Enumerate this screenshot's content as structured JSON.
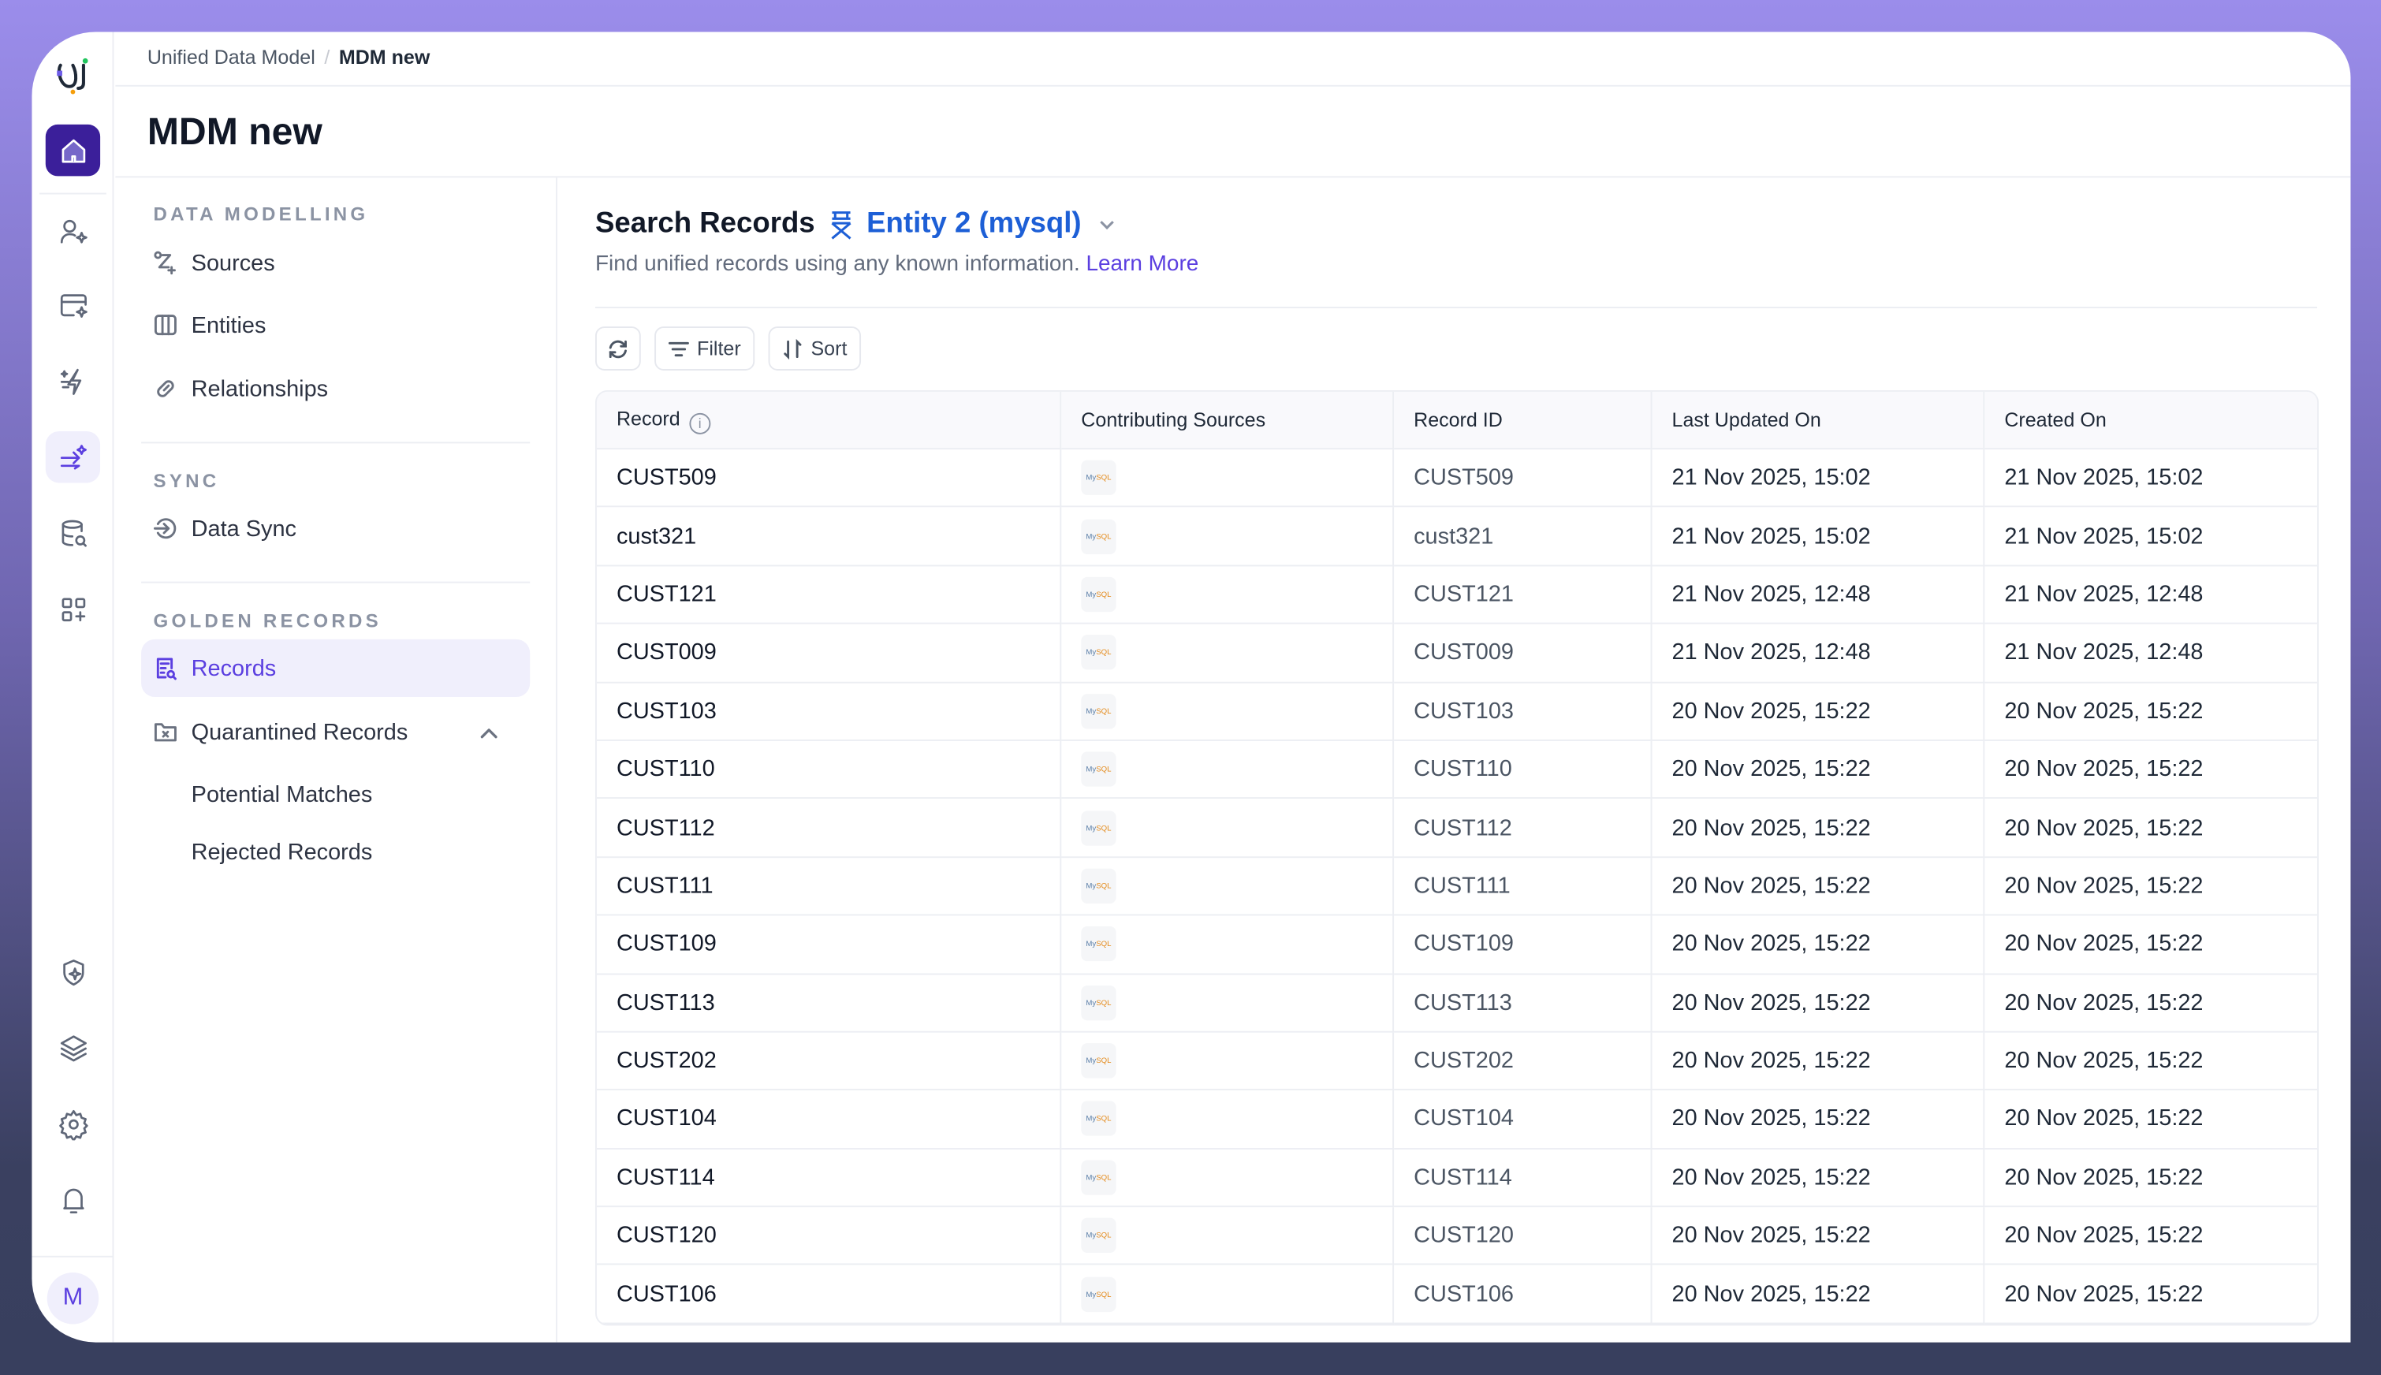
{
  "breadcrumb": {
    "parent": "Unified Data Model",
    "current": "MDM new"
  },
  "page_title": "MDM new",
  "rail": {
    "icons": [
      "home-icon",
      "user-sparkle-icon",
      "card-sparkle-icon",
      "bolt-sparkle-icon",
      "flow-sparkle-icon",
      "database-search-icon",
      "grid-plus-icon",
      "shield-sparkle-icon",
      "layers-icon",
      "gear-icon",
      "bell-icon"
    ],
    "active": "flow-sparkle-icon",
    "avatar": "M"
  },
  "nav": {
    "data_modelling": {
      "label": "DATA MODELLING",
      "items": [
        "Sources",
        "Entities",
        "Relationships"
      ]
    },
    "sync": {
      "label": "SYNC",
      "items": [
        "Data Sync"
      ]
    },
    "golden_records": {
      "label": "GOLDEN RECORDS",
      "records": "Records",
      "quarantined": "Quarantined Records",
      "sub": [
        "Potential Matches",
        "Rejected Records"
      ]
    }
  },
  "search": {
    "title": "Search Records",
    "entity": "Entity 2 (mysql)",
    "description": "Find unified records using any known information.",
    "learn_more": "Learn More"
  },
  "toolbar": {
    "filter": "Filter",
    "sort": "Sort"
  },
  "colors": {
    "accent": "#5b3fe0",
    "entity_blue": "#1d5fd6",
    "home_bg": "#3b1f9a"
  },
  "table": {
    "columns": [
      "Record",
      "Contributing Sources",
      "Record ID",
      "Last Updated On",
      "Created On"
    ],
    "source_logo": "MySQL",
    "rows": [
      [
        "CUST509",
        "CUST509",
        "21 Nov 2025, 15:02",
        "21 Nov 2025, 15:02"
      ],
      [
        "cust321",
        "cust321",
        "21 Nov 2025, 15:02",
        "21 Nov 2025, 15:02"
      ],
      [
        "CUST121",
        "CUST121",
        "21 Nov 2025, 12:48",
        "21 Nov 2025, 12:48"
      ],
      [
        "CUST009",
        "CUST009",
        "21 Nov 2025, 12:48",
        "21 Nov 2025, 12:48"
      ],
      [
        "CUST103",
        "CUST103",
        "20 Nov 2025, 15:22",
        "20 Nov 2025, 15:22"
      ],
      [
        "CUST110",
        "CUST110",
        "20 Nov 2025, 15:22",
        "20 Nov 2025, 15:22"
      ],
      [
        "CUST112",
        "CUST112",
        "20 Nov 2025, 15:22",
        "20 Nov 2025, 15:22"
      ],
      [
        "CUST111",
        "CUST111",
        "20 Nov 2025, 15:22",
        "20 Nov 2025, 15:22"
      ],
      [
        "CUST109",
        "CUST109",
        "20 Nov 2025, 15:22",
        "20 Nov 2025, 15:22"
      ],
      [
        "CUST113",
        "CUST113",
        "20 Nov 2025, 15:22",
        "20 Nov 2025, 15:22"
      ],
      [
        "CUST202",
        "CUST202",
        "20 Nov 2025, 15:22",
        "20 Nov 2025, 15:22"
      ],
      [
        "CUST104",
        "CUST104",
        "20 Nov 2025, 15:22",
        "20 Nov 2025, 15:22"
      ],
      [
        "CUST114",
        "CUST114",
        "20 Nov 2025, 15:22",
        "20 Nov 2025, 15:22"
      ],
      [
        "CUST120",
        "CUST120",
        "20 Nov 2025, 15:22",
        "20 Nov 2025, 15:22"
      ],
      [
        "CUST106",
        "CUST106",
        "20 Nov 2025, 15:22",
        "20 Nov 2025, 15:22"
      ]
    ]
  }
}
